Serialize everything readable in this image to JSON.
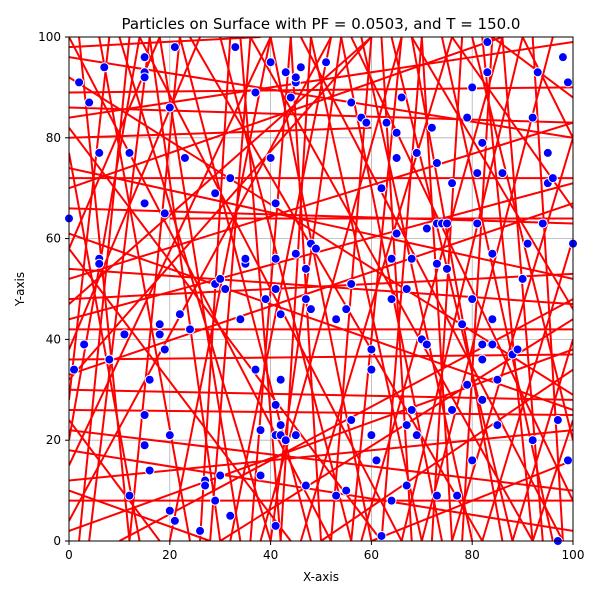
{
  "chart_data": {
    "type": "scatter",
    "title": "Particles on Surface with PF = 0.0503, and T = 150.0",
    "xlabel": "X-axis",
    "ylabel": "Y-axis",
    "xlim": [
      0,
      100
    ],
    "ylim": [
      0,
      100
    ],
    "xticks": [
      "0",
      "20",
      "40",
      "60",
      "80",
      "100"
    ],
    "yticks": [
      "0",
      "20",
      "40",
      "60",
      "80",
      "100"
    ],
    "grid": true,
    "colors": {
      "points": "#0000ff",
      "point_edge": "#ffffff",
      "lines": "#ff0000",
      "grid": "#b0b0b0"
    },
    "points": [
      [
        0,
        64
      ],
      [
        2,
        91
      ],
      [
        4,
        87
      ],
      [
        1,
        34
      ],
      [
        3,
        39
      ],
      [
        6,
        56
      ],
      [
        6,
        55
      ],
      [
        6,
        77
      ],
      [
        7,
        94
      ],
      [
        8,
        36
      ],
      [
        11,
        41
      ],
      [
        12,
        77
      ],
      [
        12,
        9
      ],
      [
        15,
        96
      ],
      [
        15,
        93
      ],
      [
        15,
        92
      ],
      [
        15,
        67
      ],
      [
        15,
        25
      ],
      [
        15,
        19
      ],
      [
        16,
        32
      ],
      [
        16,
        14
      ],
      [
        18,
        43
      ],
      [
        18,
        41
      ],
      [
        19,
        38
      ],
      [
        19,
        65
      ],
      [
        20,
        86
      ],
      [
        20,
        21
      ],
      [
        20,
        6
      ],
      [
        21,
        4
      ],
      [
        21,
        98
      ],
      [
        22,
        45
      ],
      [
        23,
        76
      ],
      [
        24,
        42
      ],
      [
        26,
        2
      ],
      [
        27,
        12
      ],
      [
        27,
        11
      ],
      [
        29,
        51
      ],
      [
        29,
        8
      ],
      [
        29,
        69
      ],
      [
        30,
        52
      ],
      [
        30,
        13
      ],
      [
        31,
        50
      ],
      [
        32,
        72
      ],
      [
        32,
        5
      ],
      [
        33,
        98
      ],
      [
        34,
        44
      ],
      [
        35,
        55
      ],
      [
        35,
        56
      ],
      [
        37,
        34
      ],
      [
        37,
        89
      ],
      [
        38,
        22
      ],
      [
        38,
        13
      ],
      [
        39,
        48
      ],
      [
        40,
        95
      ],
      [
        40,
        76
      ],
      [
        41,
        67
      ],
      [
        41,
        56
      ],
      [
        41,
        50
      ],
      [
        41,
        27
      ],
      [
        41,
        21
      ],
      [
        41,
        3
      ],
      [
        42,
        45
      ],
      [
        42,
        32
      ],
      [
        42,
        23
      ],
      [
        42,
        21
      ],
      [
        43,
        20
      ],
      [
        43,
        93
      ],
      [
        44,
        88
      ],
      [
        45,
        57
      ],
      [
        45,
        91
      ],
      [
        45,
        21
      ],
      [
        45,
        92
      ],
      [
        46,
        94
      ],
      [
        47,
        54
      ],
      [
        47,
        11
      ],
      [
        47,
        48
      ],
      [
        48,
        46
      ],
      [
        48,
        59
      ],
      [
        49,
        58
      ],
      [
        51,
        95
      ],
      [
        53,
        44
      ],
      [
        53,
        9
      ],
      [
        55,
        46
      ],
      [
        55,
        10
      ],
      [
        56,
        51
      ],
      [
        56,
        87
      ],
      [
        56,
        24
      ],
      [
        58,
        84
      ],
      [
        59,
        83
      ],
      [
        60,
        38
      ],
      [
        60,
        34
      ],
      [
        60,
        21
      ],
      [
        61,
        16
      ],
      [
        62,
        1
      ],
      [
        62,
        70
      ],
      [
        63,
        83
      ],
      [
        64,
        56
      ],
      [
        64,
        48
      ],
      [
        64,
        8
      ],
      [
        65,
        81
      ],
      [
        65,
        61
      ],
      [
        65,
        76
      ],
      [
        66,
        88
      ],
      [
        67,
        50
      ],
      [
        67,
        23
      ],
      [
        67,
        11
      ],
      [
        68,
        56
      ],
      [
        68,
        26
      ],
      [
        69,
        77
      ],
      [
        69,
        21
      ],
      [
        70,
        40
      ],
      [
        71,
        39
      ],
      [
        71,
        62
      ],
      [
        72,
        82
      ],
      [
        73,
        75
      ],
      [
        73,
        63
      ],
      [
        73,
        55
      ],
      [
        73,
        9
      ],
      [
        74,
        63
      ],
      [
        75,
        63
      ],
      [
        75,
        54
      ],
      [
        76,
        71
      ],
      [
        76,
        26
      ],
      [
        77,
        9
      ],
      [
        78,
        43
      ],
      [
        79,
        84
      ],
      [
        79,
        31
      ],
      [
        80,
        90
      ],
      [
        80,
        48
      ],
      [
        80,
        16
      ],
      [
        81,
        73
      ],
      [
        81,
        63
      ],
      [
        82,
        39
      ],
      [
        82,
        36
      ],
      [
        82,
        28
      ],
      [
        82,
        79
      ],
      [
        83,
        99
      ],
      [
        83,
        93
      ],
      [
        84,
        57
      ],
      [
        84,
        39
      ],
      [
        84,
        44
      ],
      [
        85,
        32
      ],
      [
        85,
        23
      ],
      [
        86,
        73
      ],
      [
        88,
        37
      ],
      [
        89,
        38
      ],
      [
        90,
        52
      ],
      [
        91,
        59
      ],
      [
        92,
        20
      ],
      [
        92,
        84
      ],
      [
        93,
        93
      ],
      [
        94,
        63
      ],
      [
        95,
        71
      ],
      [
        95,
        77
      ],
      [
        96,
        72
      ],
      [
        97,
        0
      ],
      [
        97,
        24
      ],
      [
        98,
        96
      ],
      [
        99,
        91
      ],
      [
        99,
        16
      ],
      [
        100,
        59
      ]
    ],
    "segments": [
      [
        0,
        98,
        38,
        100
      ],
      [
        0,
        70,
        86,
        100
      ],
      [
        0,
        58,
        18,
        100
      ],
      [
        0,
        52,
        100,
        83
      ],
      [
        0,
        47,
        60,
        100
      ],
      [
        0,
        44,
        100,
        71
      ],
      [
        0,
        38,
        26,
        100
      ],
      [
        0,
        33,
        100,
        67
      ],
      [
        0,
        28,
        8,
        100
      ],
      [
        0,
        20,
        14,
        100
      ],
      [
        0,
        15,
        40,
        100
      ],
      [
        0,
        8,
        100,
        8
      ],
      [
        0,
        4,
        52,
        100
      ],
      [
        0,
        84,
        100,
        99
      ],
      [
        0,
        80,
        60,
        82
      ],
      [
        0,
        77,
        14,
        0
      ],
      [
        0,
        74,
        100,
        52
      ],
      [
        0,
        66,
        100,
        63
      ],
      [
        0,
        92,
        100,
        29
      ],
      [
        0,
        89,
        100,
        90
      ],
      [
        0,
        61,
        100,
        26
      ],
      [
        0,
        54,
        100,
        47
      ],
      [
        0,
        42,
        100,
        42
      ],
      [
        0,
        26,
        100,
        25
      ],
      [
        0,
        18,
        100,
        2
      ],
      [
        0,
        12,
        100,
        22
      ],
      [
        2,
        100,
        12,
        0
      ],
      [
        4,
        0,
        16,
        100
      ],
      [
        6,
        100,
        24,
        0
      ],
      [
        10,
        100,
        40,
        0
      ],
      [
        12,
        0,
        22,
        100
      ],
      [
        16,
        100,
        30,
        0
      ],
      [
        20,
        0,
        40,
        100
      ],
      [
        22,
        100,
        48,
        0
      ],
      [
        28,
        0,
        36,
        100
      ],
      [
        30,
        100,
        56,
        0
      ],
      [
        34,
        100,
        42,
        0
      ],
      [
        36,
        0,
        44,
        100
      ],
      [
        38,
        0,
        66,
        100
      ],
      [
        40,
        100,
        60,
        0
      ],
      [
        42,
        0,
        48,
        100
      ],
      [
        44,
        100,
        50,
        0
      ],
      [
        46,
        0,
        76,
        100
      ],
      [
        48,
        100,
        70,
        0
      ],
      [
        52,
        0,
        60,
        100
      ],
      [
        54,
        100,
        74,
        0
      ],
      [
        56,
        0,
        66,
        100
      ],
      [
        58,
        100,
        80,
        0
      ],
      [
        62,
        0,
        70,
        100
      ],
      [
        64,
        100,
        88,
        0
      ],
      [
        66,
        0,
        90,
        100
      ],
      [
        68,
        100,
        86,
        0
      ],
      [
        72,
        0,
        78,
        100
      ],
      [
        74,
        100,
        96,
        0
      ],
      [
        78,
        0,
        84,
        100
      ],
      [
        80,
        100,
        100,
        20
      ],
      [
        82,
        0,
        100,
        60
      ],
      [
        86,
        100,
        94,
        0
      ],
      [
        88,
        0,
        100,
        40
      ],
      [
        90,
        100,
        100,
        80
      ],
      [
        20,
        64,
        100,
        64
      ],
      [
        0,
        36,
        100,
        37
      ],
      [
        0,
        30,
        100,
        28
      ],
      [
        0,
        48,
        100,
        53
      ],
      [
        0,
        72,
        100,
        72
      ],
      [
        0,
        86,
        100,
        83
      ],
      [
        0,
        96,
        100,
        80
      ],
      [
        0,
        2,
        100,
        38
      ],
      [
        0,
        22,
        100,
        10
      ],
      [
        10,
        0,
        100,
        48
      ],
      [
        30,
        0,
        100,
        44
      ],
      [
        50,
        0,
        100,
        34
      ],
      [
        60,
        0,
        100,
        16
      ],
      [
        0,
        100,
        52,
        0
      ],
      [
        14,
        100,
        66,
        0
      ],
      [
        24,
        100,
        82,
        0
      ],
      [
        36,
        100,
        92,
        0
      ],
      [
        46,
        100,
        98,
        0
      ],
      [
        56,
        100,
        100,
        8
      ],
      [
        68,
        100,
        100,
        46
      ],
      [
        76,
        100,
        100,
        66
      ],
      [
        84,
        100,
        100,
        88
      ],
      [
        0,
        58,
        44,
        0
      ],
      [
        0,
        82,
        62,
        0
      ],
      [
        0,
        24,
        18,
        0
      ],
      [
        18,
        100,
        34,
        0
      ],
      [
        62,
        100,
        68,
        0
      ],
      [
        70,
        100,
        76,
        0
      ],
      [
        82,
        100,
        92,
        0
      ],
      [
        92,
        100,
        98,
        0
      ],
      [
        2,
        0,
        12,
        100
      ],
      [
        26,
        0,
        32,
        100
      ],
      [
        32,
        0,
        52,
        100
      ],
      [
        40,
        0,
        54,
        100
      ],
      [
        58,
        0,
        86,
        100
      ],
      [
        70,
        0,
        96,
        100
      ],
      [
        76,
        0,
        100,
        80
      ],
      [
        92,
        0,
        100,
        24
      ],
      [
        0,
        10,
        28,
        0
      ],
      [
        0,
        32,
        60,
        100
      ]
    ]
  }
}
